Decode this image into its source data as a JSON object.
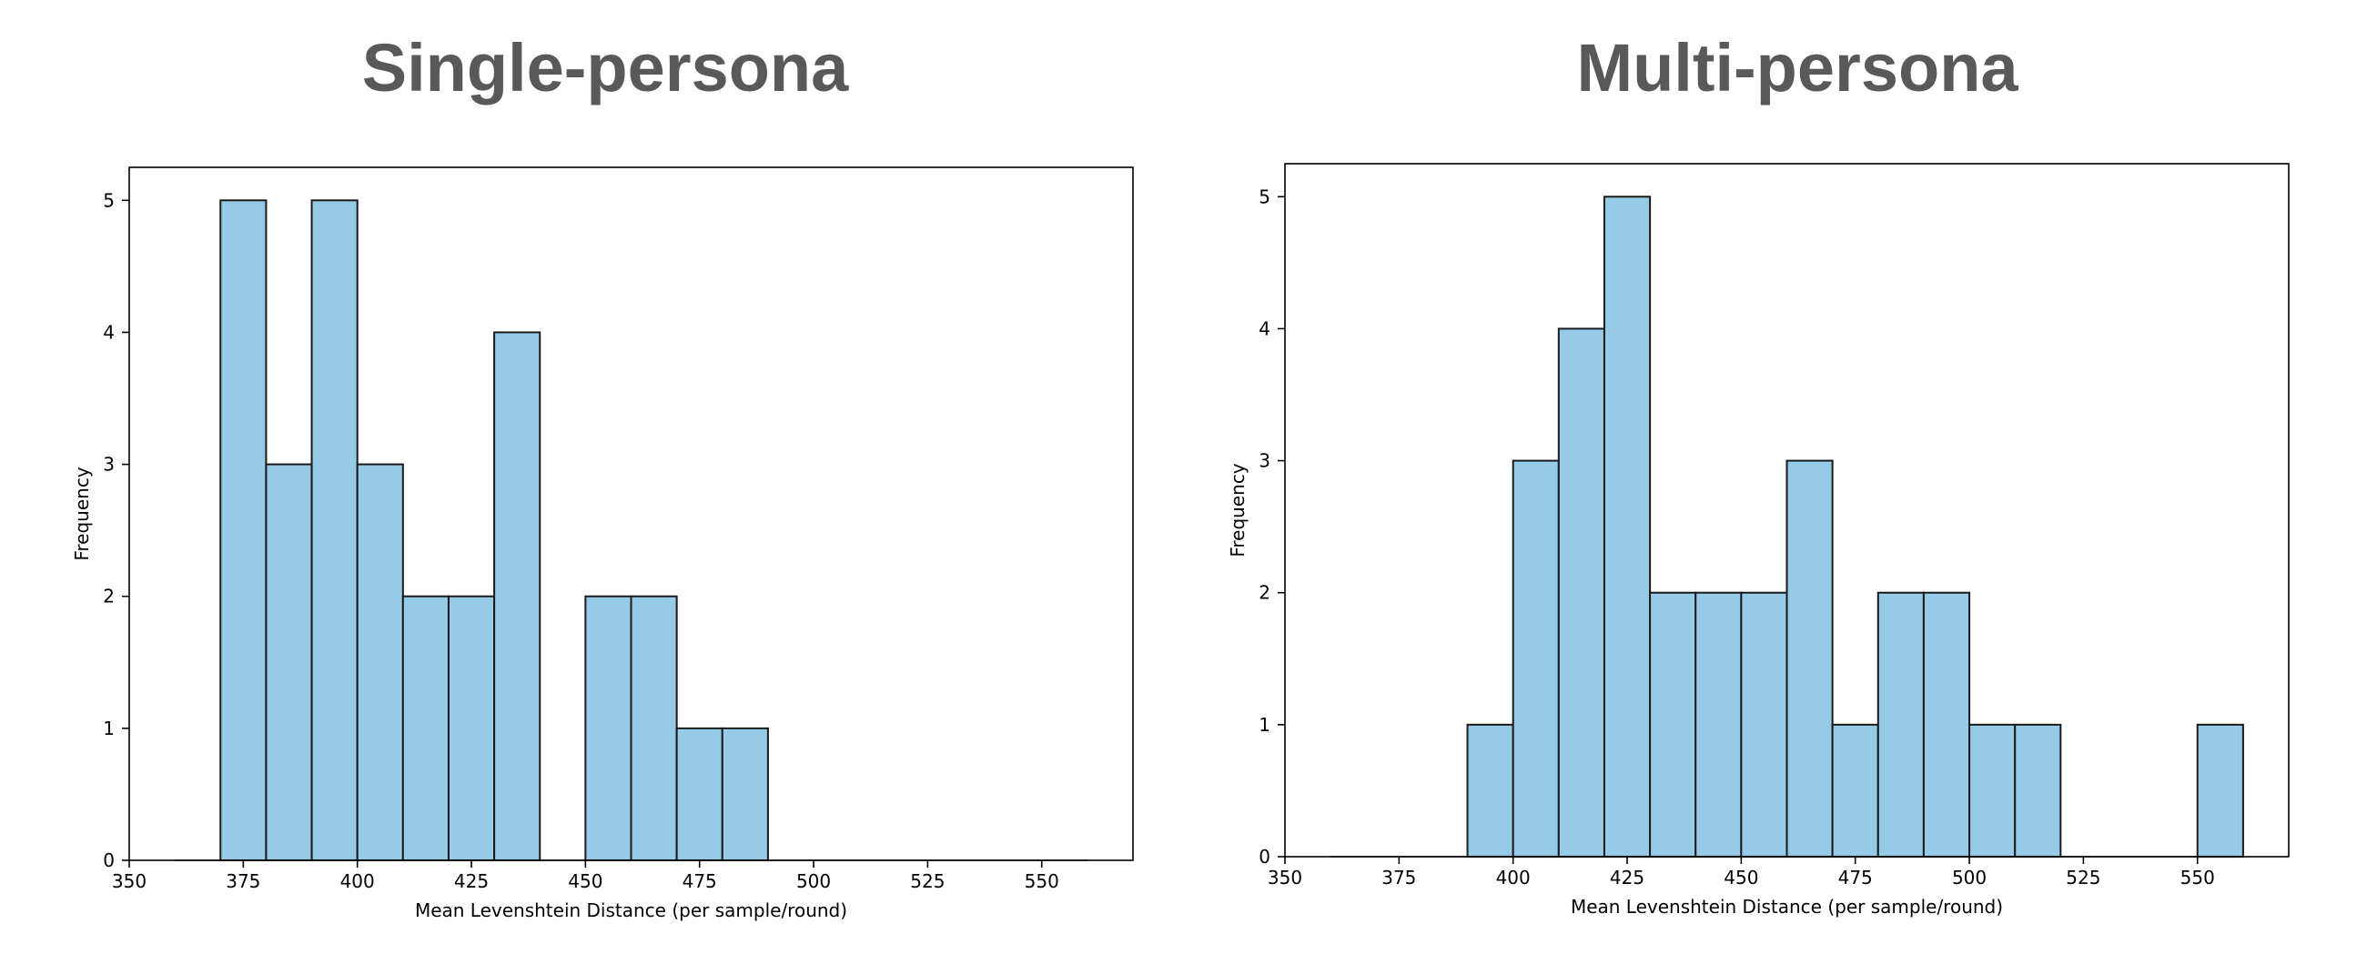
{
  "panels": [
    {
      "title": "Single-persona"
    },
    {
      "title": "Multi-persona"
    }
  ],
  "colors": {
    "bar_fill": "#96cbe8",
    "bar_edge": "#1a1a1a",
    "title": "#595959"
  },
  "chart_data": [
    {
      "type": "bar",
      "title": "Single-persona",
      "xlabel": "Mean Levenshtein Distance (per sample/round)",
      "ylabel": "Frequency",
      "xlim": [
        350,
        570
      ],
      "ylim": [
        0,
        5.25
      ],
      "xticks": [
        350,
        375,
        400,
        425,
        450,
        475,
        500,
        525,
        550
      ],
      "yticks": [
        0,
        1,
        2,
        3,
        4,
        5
      ],
      "bin_width": 10,
      "bins": [
        {
          "x0": 360,
          "x1": 370,
          "count": 0
        },
        {
          "x0": 370,
          "x1": 380,
          "count": 5
        },
        {
          "x0": 380,
          "x1": 390,
          "count": 3
        },
        {
          "x0": 390,
          "x1": 400,
          "count": 5
        },
        {
          "x0": 400,
          "x1": 410,
          "count": 3
        },
        {
          "x0": 410,
          "x1": 420,
          "count": 2
        },
        {
          "x0": 420,
          "x1": 430,
          "count": 2
        },
        {
          "x0": 430,
          "x1": 440,
          "count": 4
        },
        {
          "x0": 440,
          "x1": 450,
          "count": 0
        },
        {
          "x0": 450,
          "x1": 460,
          "count": 2
        },
        {
          "x0": 460,
          "x1": 470,
          "count": 2
        },
        {
          "x0": 470,
          "x1": 480,
          "count": 1
        },
        {
          "x0": 480,
          "x1": 490,
          "count": 1
        },
        {
          "x0": 490,
          "x1": 500,
          "count": 0
        },
        {
          "x0": 500,
          "x1": 510,
          "count": 0
        },
        {
          "x0": 510,
          "x1": 520,
          "count": 0
        },
        {
          "x0": 520,
          "x1": 530,
          "count": 0
        },
        {
          "x0": 530,
          "x1": 540,
          "count": 0
        },
        {
          "x0": 540,
          "x1": 550,
          "count": 0
        },
        {
          "x0": 550,
          "x1": 560,
          "count": 0
        }
      ],
      "grid": false,
      "legend": "none"
    },
    {
      "type": "bar",
      "title": "Multi-persona",
      "xlabel": "Mean Levenshtein Distance (per sample/round)",
      "ylabel": "Frequency",
      "xlim": [
        350,
        570
      ],
      "ylim": [
        0,
        5.25
      ],
      "xticks": [
        350,
        375,
        400,
        425,
        450,
        475,
        500,
        525,
        550
      ],
      "yticks": [
        0,
        1,
        2,
        3,
        4,
        5
      ],
      "bin_width": 10,
      "bins": [
        {
          "x0": 360,
          "x1": 370,
          "count": 0
        },
        {
          "x0": 370,
          "x1": 380,
          "count": 0
        },
        {
          "x0": 380,
          "x1": 390,
          "count": 0
        },
        {
          "x0": 390,
          "x1": 400,
          "count": 1
        },
        {
          "x0": 400,
          "x1": 410,
          "count": 3
        },
        {
          "x0": 410,
          "x1": 420,
          "count": 4
        },
        {
          "x0": 420,
          "x1": 430,
          "count": 5
        },
        {
          "x0": 430,
          "x1": 440,
          "count": 2
        },
        {
          "x0": 440,
          "x1": 450,
          "count": 2
        },
        {
          "x0": 450,
          "x1": 460,
          "count": 2
        },
        {
          "x0": 460,
          "x1": 470,
          "count": 3
        },
        {
          "x0": 470,
          "x1": 480,
          "count": 1
        },
        {
          "x0": 480,
          "x1": 490,
          "count": 2
        },
        {
          "x0": 490,
          "x1": 500,
          "count": 2
        },
        {
          "x0": 500,
          "x1": 510,
          "count": 1
        },
        {
          "x0": 510,
          "x1": 520,
          "count": 1
        },
        {
          "x0": 520,
          "x1": 530,
          "count": 0
        },
        {
          "x0": 530,
          "x1": 540,
          "count": 0
        },
        {
          "x0": 540,
          "x1": 550,
          "count": 0
        },
        {
          "x0": 550,
          "x1": 560,
          "count": 1
        }
      ],
      "grid": false,
      "legend": "none"
    }
  ]
}
